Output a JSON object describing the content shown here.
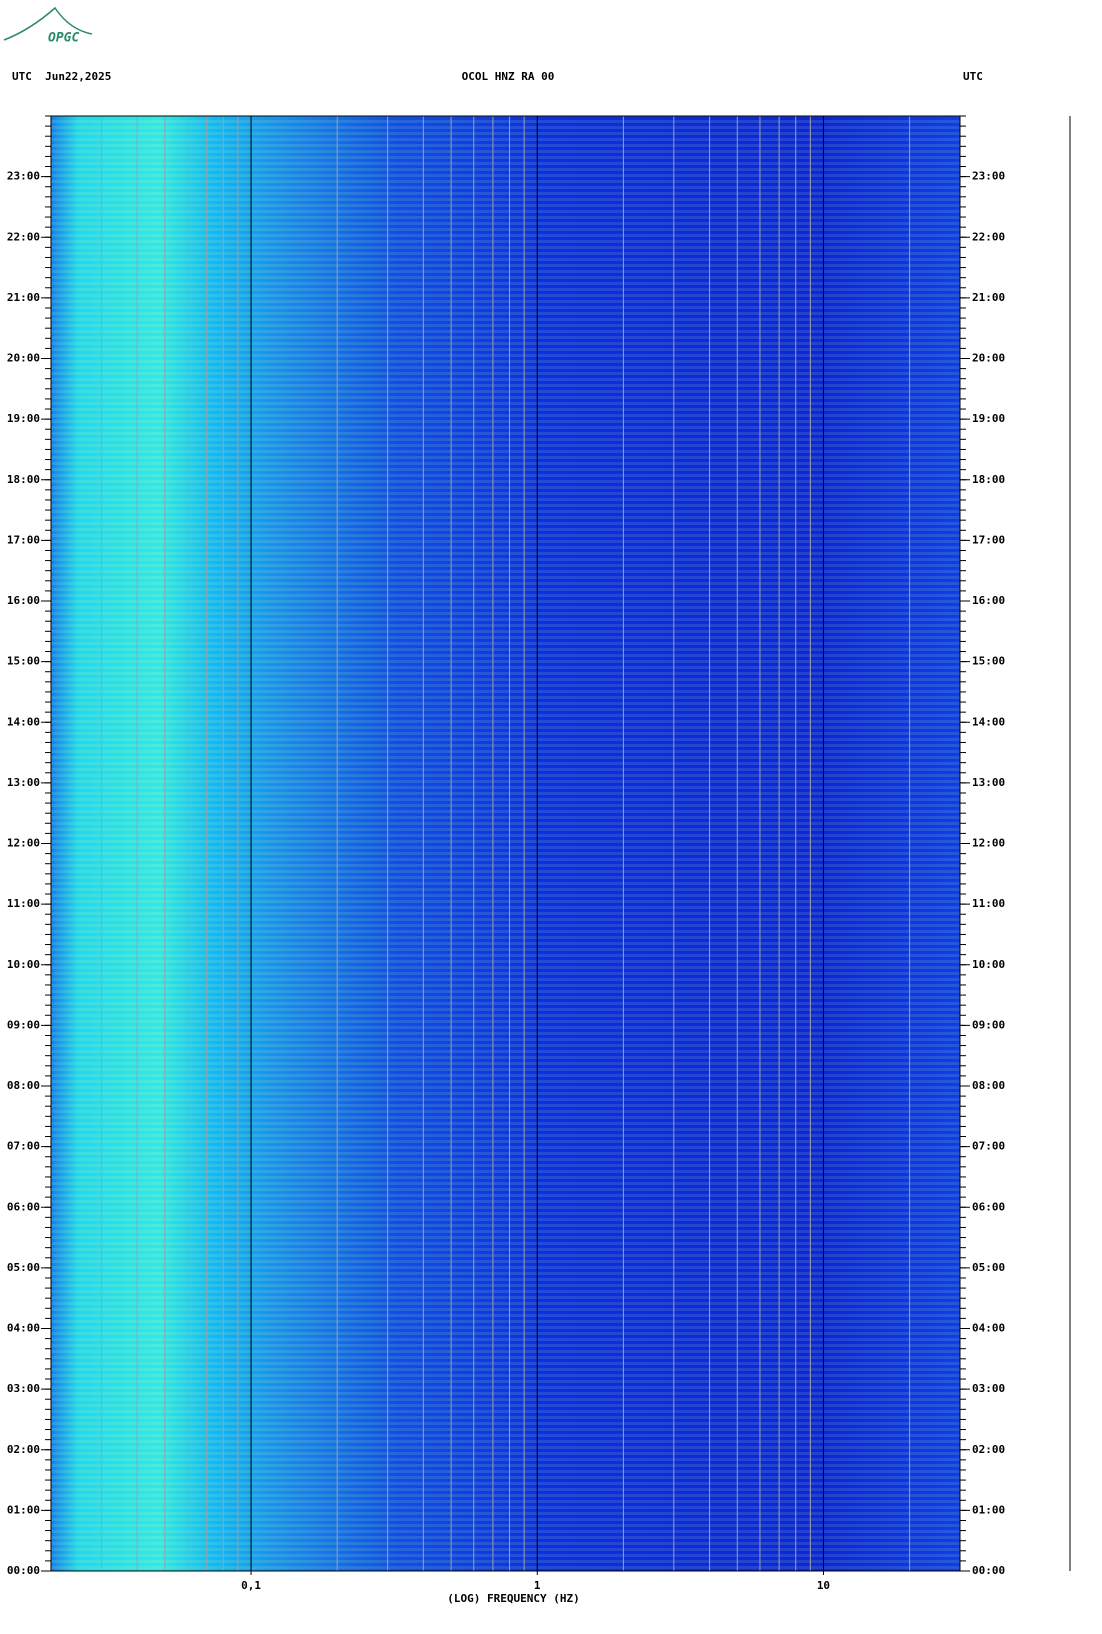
{
  "logo": "OPGC",
  "chart_data": {
    "type": "spectrogram",
    "title": "OCOL HNZ RA 00",
    "left_header": "UTC  Jun22,2025",
    "right_header": "UTC",
    "x_label": "(LOG) FREQUENCY (HZ)",
    "xscale": "log",
    "xlim": [
      0.02,
      30
    ],
    "xticks": [
      {
        "value": 0.1,
        "label": "0,1"
      },
      1,
      10
    ],
    "xminorticks": [
      0.03,
      0.04,
      0.05,
      0.06,
      0.07,
      0.08,
      0.09,
      0.2,
      0.3,
      0.4,
      0.5,
      0.6,
      0.7,
      0.8,
      0.9,
      2,
      3,
      4,
      5,
      6,
      7,
      8,
      9,
      20
    ],
    "ylim": [
      0,
      24
    ],
    "yticks": [
      {
        "value": 0,
        "label": "00:00"
      },
      {
        "value": 1,
        "label": "01:00"
      },
      {
        "value": 2,
        "label": "02:00"
      },
      {
        "value": 3,
        "label": "03:00"
      },
      {
        "value": 4,
        "label": "04:00"
      },
      {
        "value": 5,
        "label": "05:00"
      },
      {
        "value": 6,
        "label": "06:00"
      },
      {
        "value": 7,
        "label": "07:00"
      },
      {
        "value": 8,
        "label": "08:00"
      },
      {
        "value": 9,
        "label": "09:00"
      },
      {
        "value": 10,
        "label": "10:00"
      },
      {
        "value": 11,
        "label": "11:00"
      },
      {
        "value": 12,
        "label": "12:00"
      },
      {
        "value": 13,
        "label": "13:00"
      },
      {
        "value": 14,
        "label": "14:00"
      },
      {
        "value": 15,
        "label": "15:00"
      },
      {
        "value": 16,
        "label": "16:00"
      },
      {
        "value": 17,
        "label": "17:00"
      },
      {
        "value": 18,
        "label": "18:00"
      },
      {
        "value": 19,
        "label": "19:00"
      },
      {
        "value": 20,
        "label": "20:00"
      },
      {
        "value": 21,
        "label": "21:00"
      },
      {
        "value": 22,
        "label": "22:00"
      },
      {
        "value": 23,
        "label": "23:00"
      }
    ]
  }
}
